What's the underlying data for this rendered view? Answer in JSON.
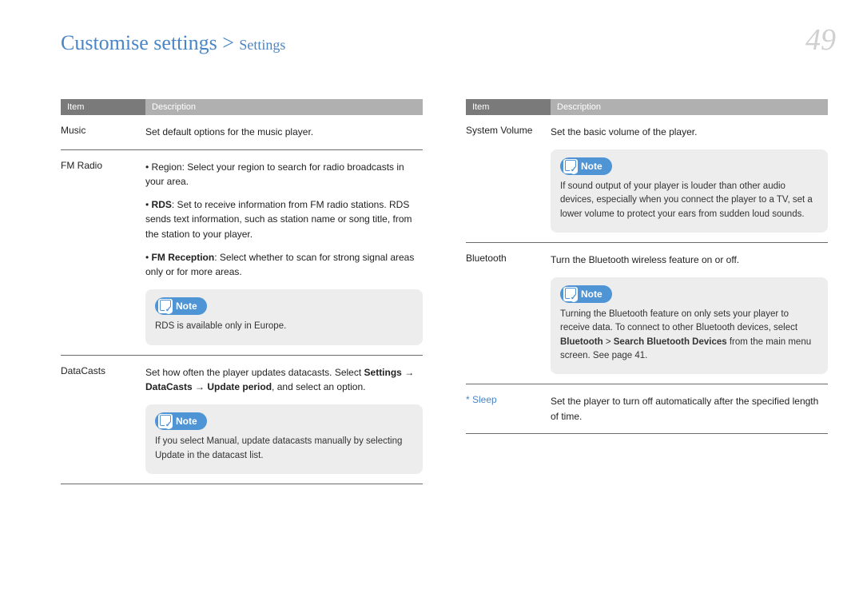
{
  "header": {
    "breadcrumb_main": "Customise settings > ",
    "breadcrumb_sub": "Settings",
    "page_number": "49"
  },
  "table_header": {
    "left": "Item",
    "right": "Description"
  },
  "left_col": {
    "rows": [
      {
        "item": "Music",
        "desc": "Set default options for the music player."
      },
      {
        "item": "FM Radio",
        "desc": "• Region: Select your region to search for radio broadcasts in your area.",
        "sub1_label": "RDS",
        "sub1_text": ": Set to receive information from FM radio stations. RDS sends text information, such as station name or song title, from the station to your player.",
        "sub2_label": "FM Reception",
        "sub2_text": ": Select whether to scan for strong signal areas only or for more areas.",
        "note": "RDS is available only in Europe."
      },
      {
        "item": "DataCasts",
        "desc_prefix": "Set how often the player updates datacasts. Select ",
        "desc_bold1": "Settings",
        "desc_mid": " → ",
        "desc_bold2": "DataCasts",
        "desc_mid2": " → ",
        "desc_bold3": "Update period",
        "desc_suffix": ", and select an option.",
        "note": "If you select Manual, update datacasts manually by selecting Update in the datacast list."
      }
    ]
  },
  "right_col": {
    "rows": [
      {
        "item": "System Volume",
        "desc": "Set the basic volume of the player.",
        "note": "If sound output of your player is louder than other audio devices, especially when you connect the player to a TV, set a lower volume to protect your ears from sudden loud sounds."
      },
      {
        "item": "Bluetooth",
        "desc": "Turn the Bluetooth wireless feature on or off.",
        "note_prefix": "Turning the Bluetooth feature on only sets your player to receive data. To connect to other Bluetooth devices, select ",
        "note_bold1": "Bluetooth",
        "note_mid": " > ",
        "note_bold2": "Search Bluetooth Devices",
        "note_suffix": " from the main menu screen. See page 41."
      },
      {
        "item_star": "Sleep",
        "desc": "Set the player to turn off automatically after the specified length of time."
      }
    ]
  }
}
